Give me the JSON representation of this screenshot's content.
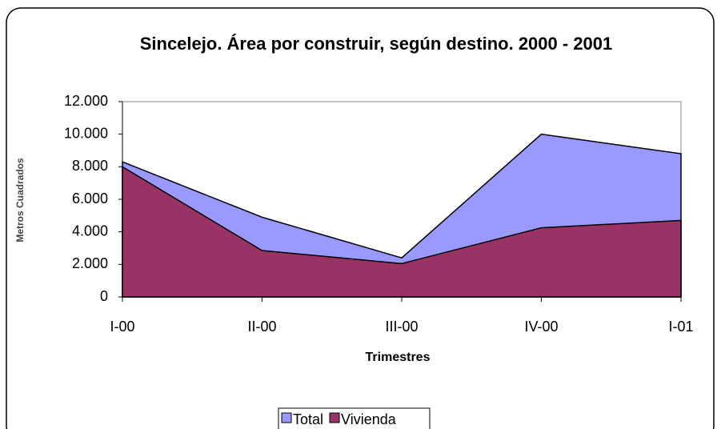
{
  "chart_data": {
    "type": "area",
    "title": "Sincelejo. Área por construir, según destino. 2000 - 2001",
    "xlabel": "Trimestres",
    "ylabel": "Metros Cuadrados",
    "categories": [
      "I-00",
      "II-00",
      "III-00",
      "IV-00",
      "I-01"
    ],
    "series": [
      {
        "name": "Total",
        "color": "#9999ff",
        "values": [
          8300,
          4900,
          2400,
          10000,
          8800
        ]
      },
      {
        "name": "Vivienda",
        "color": "#993366",
        "values": [
          8000,
          2850,
          2050,
          4250,
          4700
        ]
      }
    ],
    "ylim": [
      0,
      12000
    ],
    "yticks": [
      0,
      {
        "value": 2000,
        "label": "2.000"
      },
      {
        "value": 4000,
        "label": "4.000"
      },
      {
        "value": 6000,
        "label": "6.000"
      },
      {
        "value": 8000,
        "label": "8.000"
      },
      {
        "value": 10000,
        "label": "10.000"
      },
      {
        "value": 12000,
        "label": "12.000"
      }
    ],
    "grid": false,
    "legend": "bottom"
  }
}
